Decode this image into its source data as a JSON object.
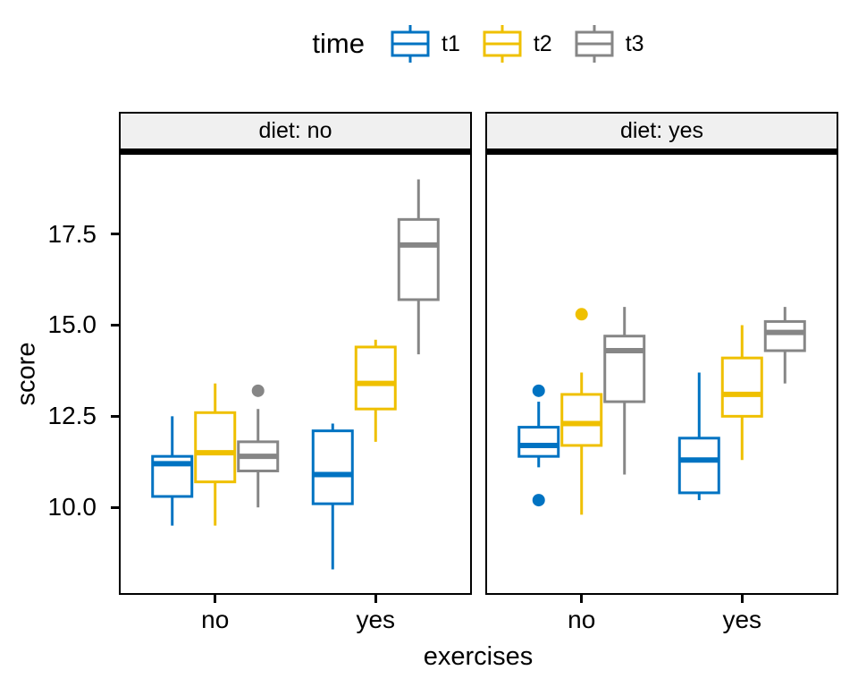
{
  "legend": {
    "title": "time",
    "entries": [
      {
        "label": "t1",
        "color": "#0073C2"
      },
      {
        "label": "t2",
        "color": "#EFC000"
      },
      {
        "label": "t3",
        "color": "#868686"
      }
    ]
  },
  "chart_data": {
    "type": "boxplot",
    "title": "",
    "xlabel": "exercises",
    "ylabel": "score",
    "x_categories": [
      "no",
      "yes"
    ],
    "series_variable": "time",
    "facet_variable": "diet",
    "yticks": [
      "17.5",
      "15.0",
      "12.5",
      "10.0"
    ],
    "ylim": [
      7.6,
      19.7
    ],
    "grid": "off",
    "legend_position": "top",
    "facets": [
      {
        "label": "diet: no",
        "boxes": [
          {
            "x": "no",
            "series": "t1",
            "whislo": 9.5,
            "q1": 10.3,
            "med": 11.2,
            "q3": 11.4,
            "whishi": 12.5,
            "outliers": []
          },
          {
            "x": "no",
            "series": "t2",
            "whislo": 9.5,
            "q1": 10.7,
            "med": 11.5,
            "q3": 12.6,
            "whishi": 13.4,
            "outliers": []
          },
          {
            "x": "no",
            "series": "t3",
            "whislo": 10.0,
            "q1": 11.0,
            "med": 11.4,
            "q3": 11.8,
            "whishi": 12.7,
            "outliers": [
              13.2
            ]
          },
          {
            "x": "yes",
            "series": "t1",
            "whislo": 8.3,
            "q1": 10.1,
            "med": 10.9,
            "q3": 12.1,
            "whishi": 12.3,
            "outliers": []
          },
          {
            "x": "yes",
            "series": "t2",
            "whislo": 11.8,
            "q1": 12.7,
            "med": 13.4,
            "q3": 14.4,
            "whishi": 14.6,
            "outliers": []
          },
          {
            "x": "yes",
            "series": "t3",
            "whislo": 14.2,
            "q1": 15.7,
            "med": 17.2,
            "q3": 17.9,
            "whishi": 19.0,
            "outliers": []
          }
        ]
      },
      {
        "label": "diet: yes",
        "boxes": [
          {
            "x": "no",
            "series": "t1",
            "whislo": 11.1,
            "q1": 11.4,
            "med": 11.7,
            "q3": 12.2,
            "whishi": 12.9,
            "outliers": [
              13.2,
              10.2
            ]
          },
          {
            "x": "no",
            "series": "t2",
            "whislo": 9.8,
            "q1": 11.7,
            "med": 12.3,
            "q3": 13.1,
            "whishi": 13.7,
            "outliers": [
              15.3
            ]
          },
          {
            "x": "no",
            "series": "t3",
            "whislo": 10.9,
            "q1": 12.9,
            "med": 14.3,
            "q3": 14.7,
            "whishi": 15.5,
            "outliers": []
          },
          {
            "x": "yes",
            "series": "t1",
            "whislo": 10.2,
            "q1": 10.4,
            "med": 11.3,
            "q3": 11.9,
            "whishi": 13.7,
            "outliers": []
          },
          {
            "x": "yes",
            "series": "t2",
            "whislo": 11.3,
            "q1": 12.5,
            "med": 13.1,
            "q3": 14.1,
            "whishi": 15.0,
            "outliers": []
          },
          {
            "x": "yes",
            "series": "t3",
            "whislo": 13.4,
            "q1": 14.3,
            "med": 14.8,
            "q3": 15.1,
            "whishi": 15.5,
            "outliers": []
          }
        ]
      }
    ]
  },
  "style": {
    "strip_background": "#f0f0f0",
    "panel_border": "#000000",
    "text_color": "#000000",
    "box_fill": "#ffffff"
  }
}
